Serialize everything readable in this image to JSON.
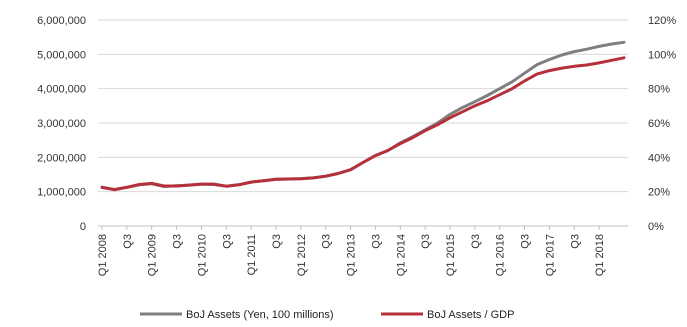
{
  "chart_data": {
    "type": "line",
    "x": [
      "Q1 2008",
      "Q2 2008",
      "Q3 2008",
      "Q4 2008",
      "Q1 2009",
      "Q2 2009",
      "Q3 2009",
      "Q4 2009",
      "Q1 2010",
      "Q2 2010",
      "Q3 2010",
      "Q4 2010",
      "Q1 2011",
      "Q2 2011",
      "Q3 2011",
      "Q4 2011",
      "Q1 2012",
      "Q2 2012",
      "Q3 2012",
      "Q4 2012",
      "Q1 2013",
      "Q2 2013",
      "Q3 2013",
      "Q4 2013",
      "Q1 2014",
      "Q2 2014",
      "Q3 2014",
      "Q4 2014",
      "Q1 2015",
      "Q2 2015",
      "Q3 2015",
      "Q4 2015",
      "Q1 2016",
      "Q2 2016",
      "Q3 2016",
      "Q4 2016",
      "Q1 2017",
      "Q2 2017",
      "Q3 2017",
      "Q4 2017",
      "Q1 2018",
      "Q2 2018",
      "Q3 2018"
    ],
    "x_tick_labels": [
      "Q1 2008",
      "Q3",
      "Q1 2009",
      "Q3",
      "Q1 2010",
      "Q3",
      "Q1 2011",
      "Q3",
      "Q1 2012",
      "Q3",
      "Q1 2013",
      "Q3",
      "Q1 2014",
      "Q3",
      "Q1 2015",
      "Q3",
      "Q1 2016",
      "Q3",
      "Q1 2017",
      "Q3",
      "Q1 2018"
    ],
    "series": [
      {
        "name": "BoJ Assets (Yen, 100 millions)",
        "axis": "left",
        "color": "#7f7f7f",
        "values": [
          1130000,
          1060000,
          1130000,
          1200000,
          1230000,
          1150000,
          1170000,
          1190000,
          1220000,
          1210000,
          1160000,
          1200000,
          1280000,
          1320000,
          1360000,
          1370000,
          1380000,
          1400000,
          1450000,
          1530000,
          1640000,
          1850000,
          2050000,
          2200000,
          2420000,
          2600000,
          2800000,
          3000000,
          3250000,
          3450000,
          3620000,
          3800000,
          4000000,
          4200000,
          4450000,
          4700000,
          4850000,
          4980000,
          5080000,
          5150000,
          5230000,
          5300000,
          5350000
        ]
      },
      {
        "name": "BoJ Assets / GDP",
        "axis": "right",
        "color": "#b5303a",
        "values": [
          22.5,
          21.2,
          22.5,
          24.2,
          24.8,
          23.3,
          23.3,
          23.8,
          24.4,
          24.4,
          23.2,
          24.0,
          25.6,
          26.4,
          27.2,
          27.4,
          27.5,
          28.0,
          29.0,
          30.6,
          32.8,
          37.0,
          41.0,
          44.0,
          48.0,
          51.5,
          55.5,
          59.0,
          63.0,
          66.5,
          70.0,
          73.0,
          76.5,
          80.0,
          84.5,
          88.5,
          90.5,
          92.0,
          93.0,
          93.8,
          95.0,
          96.5,
          98.0
        ]
      }
    ],
    "y_left": {
      "lim": [
        0,
        6000000
      ],
      "ticks": [
        "0",
        "1,000,000",
        "2,000,000",
        "3,000,000",
        "4,000,000",
        "5,000,000",
        "6,000,000"
      ]
    },
    "y_right": {
      "lim": [
        0,
        120
      ],
      "ticks": [
        "0%",
        "20%",
        "40%",
        "60%",
        "80%",
        "100%",
        "120%"
      ]
    },
    "grid": true,
    "legend_position": "bottom"
  }
}
